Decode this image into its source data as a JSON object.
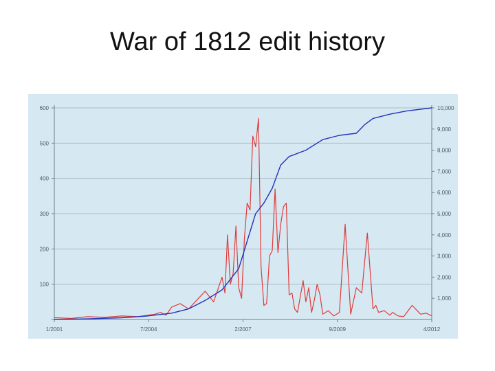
{
  "slide": {
    "title": "War of 1812 edit history"
  },
  "colors": {
    "chart_background": "#d6e8f1",
    "grid": "#a9bcc7",
    "axis": "#6f7f88",
    "label": "#4f5a60",
    "series_monthly": "#e03a3a",
    "series_cumulative": "#2233bb"
  },
  "chart_data": {
    "type": "line",
    "title": "",
    "xlabel": "",
    "ylabel": "",
    "grid": true,
    "legend": "none",
    "x_tick_labels": [
      "1/2001",
      "7/2004",
      "2/2007",
      "9/2009",
      "4/2012"
    ],
    "y_left": {
      "ylim": [
        0,
        600
      ],
      "ticks": [
        "",
        "100",
        "200",
        "300",
        "400",
        "500",
        "600"
      ]
    },
    "y_right": {
      "ylim": [
        0,
        10000
      ],
      "ticks": [
        "1,000",
        "2,000",
        "3,000",
        "4,000",
        "5,000",
        "6,000",
        "7,000",
        "8,000",
        "9,000",
        "10,000"
      ]
    },
    "series": [
      {
        "axis": "left",
        "color": "#e03a3a",
        "x": [
          "2001-01",
          "2001-07",
          "2002-01",
          "2002-07",
          "2003-01",
          "2003-07",
          "2004-01",
          "2004-03",
          "2004-05",
          "2004-07",
          "2004-10",
          "2005-01",
          "2005-04",
          "2005-07",
          "2005-10",
          "2006-01",
          "2006-02",
          "2006-03",
          "2006-04",
          "2006-05",
          "2006-06",
          "2006-07",
          "2006-08",
          "2006-09",
          "2006-10",
          "2006-11",
          "2006-12",
          "2007-01",
          "2007-02",
          "2007-03",
          "2007-04",
          "2007-05",
          "2007-06",
          "2007-07",
          "2007-08",
          "2007-09",
          "2007-10",
          "2007-11",
          "2007-12",
          "2008-01",
          "2008-02",
          "2008-03",
          "2008-04",
          "2008-05",
          "2008-06",
          "2008-07",
          "2008-08",
          "2008-09",
          "2008-10",
          "2008-11",
          "2008-12",
          "2009-01",
          "2009-03",
          "2009-05",
          "2009-07",
          "2009-09",
          "2009-11",
          "2010-01",
          "2010-03",
          "2010-05",
          "2010-07",
          "2010-08",
          "2010-09",
          "2010-11",
          "2011-01",
          "2011-02",
          "2011-03",
          "2011-04",
          "2011-06",
          "2011-09",
          "2011-12",
          "2012-02",
          "2012-04"
        ],
        "y": [
          5,
          3,
          8,
          6,
          10,
          8,
          15,
          20,
          12,
          35,
          45,
          30,
          55,
          80,
          50,
          120,
          75,
          240,
          100,
          130,
          265,
          90,
          60,
          230,
          330,
          310,
          520,
          490,
          570,
          150,
          40,
          45,
          180,
          195,
          370,
          190,
          270,
          320,
          330,
          70,
          75,
          30,
          20,
          65,
          110,
          50,
          90,
          20,
          55,
          100,
          70,
          15,
          25,
          10,
          20,
          270,
          15,
          90,
          75,
          245,
          30,
          40,
          20,
          25,
          12,
          20,
          15,
          10,
          8,
          40,
          15,
          18,
          10
        ]
      },
      {
        "axis": "right",
        "color": "#2233bb",
        "x": [
          "2001-01",
          "2002-01",
          "2003-01",
          "2003-10",
          "2004-07",
          "2005-01",
          "2005-07",
          "2006-01",
          "2006-07",
          "2006-10",
          "2007-01",
          "2007-04",
          "2007-07",
          "2007-10",
          "2008-01",
          "2008-07",
          "2009-01",
          "2009-07",
          "2010-01",
          "2010-04",
          "2010-07",
          "2011-01",
          "2011-07",
          "2012-01",
          "2012-04"
        ],
        "y": [
          0,
          30,
          80,
          160,
          300,
          500,
          900,
          1400,
          2400,
          3700,
          5000,
          5500,
          6200,
          7300,
          7700,
          8000,
          8500,
          8700,
          8800,
          9200,
          9500,
          9700,
          9850,
          9950,
          10000
        ]
      }
    ]
  }
}
